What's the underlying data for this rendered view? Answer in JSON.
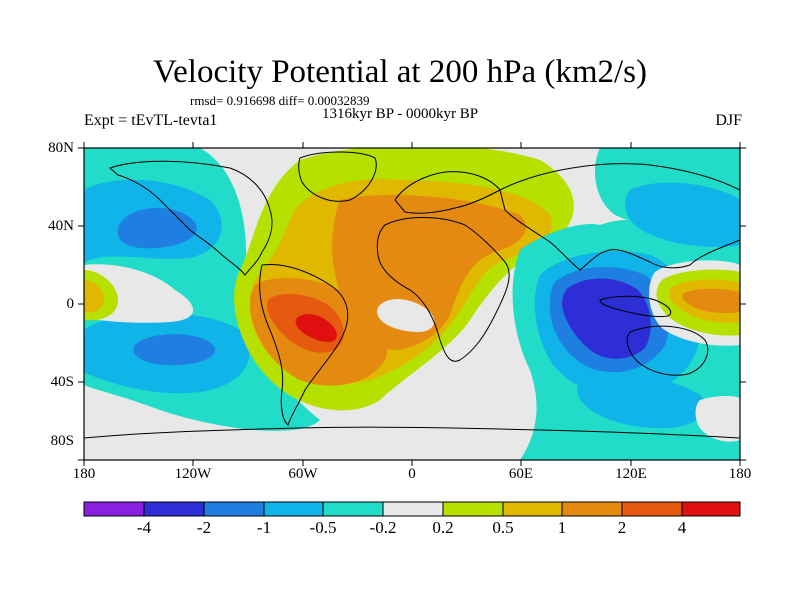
{
  "title": "Velocity Potential at 200 hPa (km2/s)",
  "stats": "rmsd= 0.916698 diff= 0.00032839",
  "period": "1316kyr BP - 0000kyr BP",
  "experiment": "Expt = tEvTL-tevta1",
  "season": "DJF",
  "lat_labels": [
    "80N",
    "40N",
    "0",
    "40S",
    "80S"
  ],
  "lon_labels": [
    "180",
    "120W",
    "60W",
    "0",
    "60E",
    "120E",
    "180"
  ],
  "colorbar": {
    "labels": [
      "-4",
      "-2",
      "-1",
      "-0.5",
      "-0.2",
      "0.2",
      "0.5",
      "1",
      "2",
      "4"
    ],
    "colors": [
      "#8a1fe0",
      "#2e2ed6",
      "#1f7fe0",
      "#10b4e8",
      "#20dcc8",
      "#e8e8e8",
      "#b6e000",
      "#e0b800",
      "#e58a10",
      "#e65a10",
      "#e01010"
    ]
  },
  "palette": {
    "neutral": "#e8e8e8",
    "pos1": "#b6e000",
    "pos2": "#e0b800",
    "pos3": "#e58a10",
    "pos4": "#e65a10",
    "pos5": "#e01010",
    "neg1": "#20dcc8",
    "neg2": "#10b4e8",
    "neg3": "#1f7fe0",
    "neg4": "#2e2ed6"
  }
}
